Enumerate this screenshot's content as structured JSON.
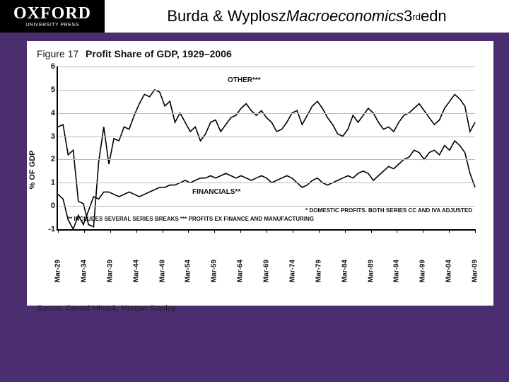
{
  "header": {
    "logo_main": "OXFORD",
    "logo_sub": "UNIVERSITY PRESS",
    "title_pre": "Burda & Wyplosz ",
    "title_italic": "Macroeconomics",
    "title_post": " 3",
    "title_sup": "rd",
    "title_tail": " edn"
  },
  "figure": {
    "label": "Figure 17",
    "title": "Profit Share of GDP, 1929–2006",
    "ylabel": "% OF GDP",
    "source_label": "Source:",
    "source_text": " Gerard Minack, Morgan Stanley",
    "type": "line",
    "background_color": "#ffffff",
    "axis_color": "#000000",
    "grid_color": "#bbbbbb",
    "line_color": "#000000",
    "line_width": 1.6,
    "ylim": [
      -1,
      6
    ],
    "yticks": [
      -1,
      0,
      1,
      2,
      3,
      4,
      5,
      6
    ],
    "xticks": [
      "Mar-29",
      "Mar-34",
      "Mar-39",
      "Mar-44",
      "Mar-49",
      "Mar-54",
      "Mar-59",
      "Mar-64",
      "Mar-69",
      "Mar-74",
      "Mar-79",
      "Mar-84",
      "Mar-89",
      "Mar-94",
      "Mar-99",
      "Mar-04",
      "Mar-09"
    ],
    "annotations": {
      "other": "OTHER***",
      "financials": "FINANCIALS**",
      "footnote1": "* DOMESTIC PROFITS.  BOTH SERIES CC AND IVA ADJUSTED",
      "footnote2": "** INCLUDES SEVERAL SERIES BREAKS   *** PROFITS EX FINANCE AND MANUFACTURING"
    },
    "series_other": [
      3.4,
      3.5,
      2.2,
      2.4,
      0.2,
      0.1,
      -0.8,
      -0.9,
      1.9,
      3.4,
      1.8,
      2.9,
      2.8,
      3.4,
      3.3,
      3.9,
      4.4,
      4.8,
      4.7,
      5.0,
      4.9,
      4.3,
      4.5,
      3.6,
      4.0,
      3.6,
      3.2,
      3.4,
      2.8,
      3.1,
      3.6,
      3.7,
      3.2,
      3.5,
      3.8,
      3.9,
      4.2,
      4.4,
      4.1,
      3.9,
      4.1,
      3.8,
      3.6,
      3.2,
      3.3,
      3.6,
      4.0,
      4.1,
      3.5,
      3.9,
      4.3,
      4.5,
      4.2,
      3.8,
      3.5,
      3.1,
      3.0,
      3.3,
      3.9,
      3.6,
      3.9,
      4.2,
      4.0,
      3.6,
      3.3,
      3.4,
      3.2,
      3.6,
      3.9,
      4.0,
      4.2,
      4.4,
      4.1,
      3.8,
      3.5,
      3.7,
      4.2,
      4.5,
      4.8,
      4.6,
      4.3,
      3.2,
      3.6
    ],
    "series_financials": [
      0.5,
      0.3,
      -0.6,
      -1.0,
      -0.4,
      -0.8,
      -0.2,
      0.4,
      0.3,
      0.6,
      0.6,
      0.5,
      0.4,
      0.5,
      0.6,
      0.5,
      0.4,
      0.5,
      0.6,
      0.7,
      0.8,
      0.8,
      0.9,
      0.9,
      1.0,
      1.1,
      1.0,
      1.1,
      1.2,
      1.2,
      1.3,
      1.2,
      1.3,
      1.4,
      1.3,
      1.2,
      1.3,
      1.2,
      1.1,
      1.2,
      1.3,
      1.2,
      1.0,
      1.1,
      1.2,
      1.3,
      1.2,
      1.0,
      0.8,
      0.9,
      1.1,
      1.2,
      1.0,
      0.9,
      1.0,
      1.1,
      1.2,
      1.3,
      1.2,
      1.4,
      1.5,
      1.4,
      1.1,
      1.3,
      1.5,
      1.7,
      1.6,
      1.8,
      2.0,
      2.1,
      2.4,
      2.3,
      2.0,
      2.3,
      2.4,
      2.2,
      2.6,
      2.4,
      2.8,
      2.6,
      2.3,
      1.4,
      0.8
    ]
  },
  "colors": {
    "slide_bg": "#4a2e6f",
    "header_bg": "#ffffff",
    "logo_bg": "#000000",
    "logo_fg": "#ffffff"
  }
}
